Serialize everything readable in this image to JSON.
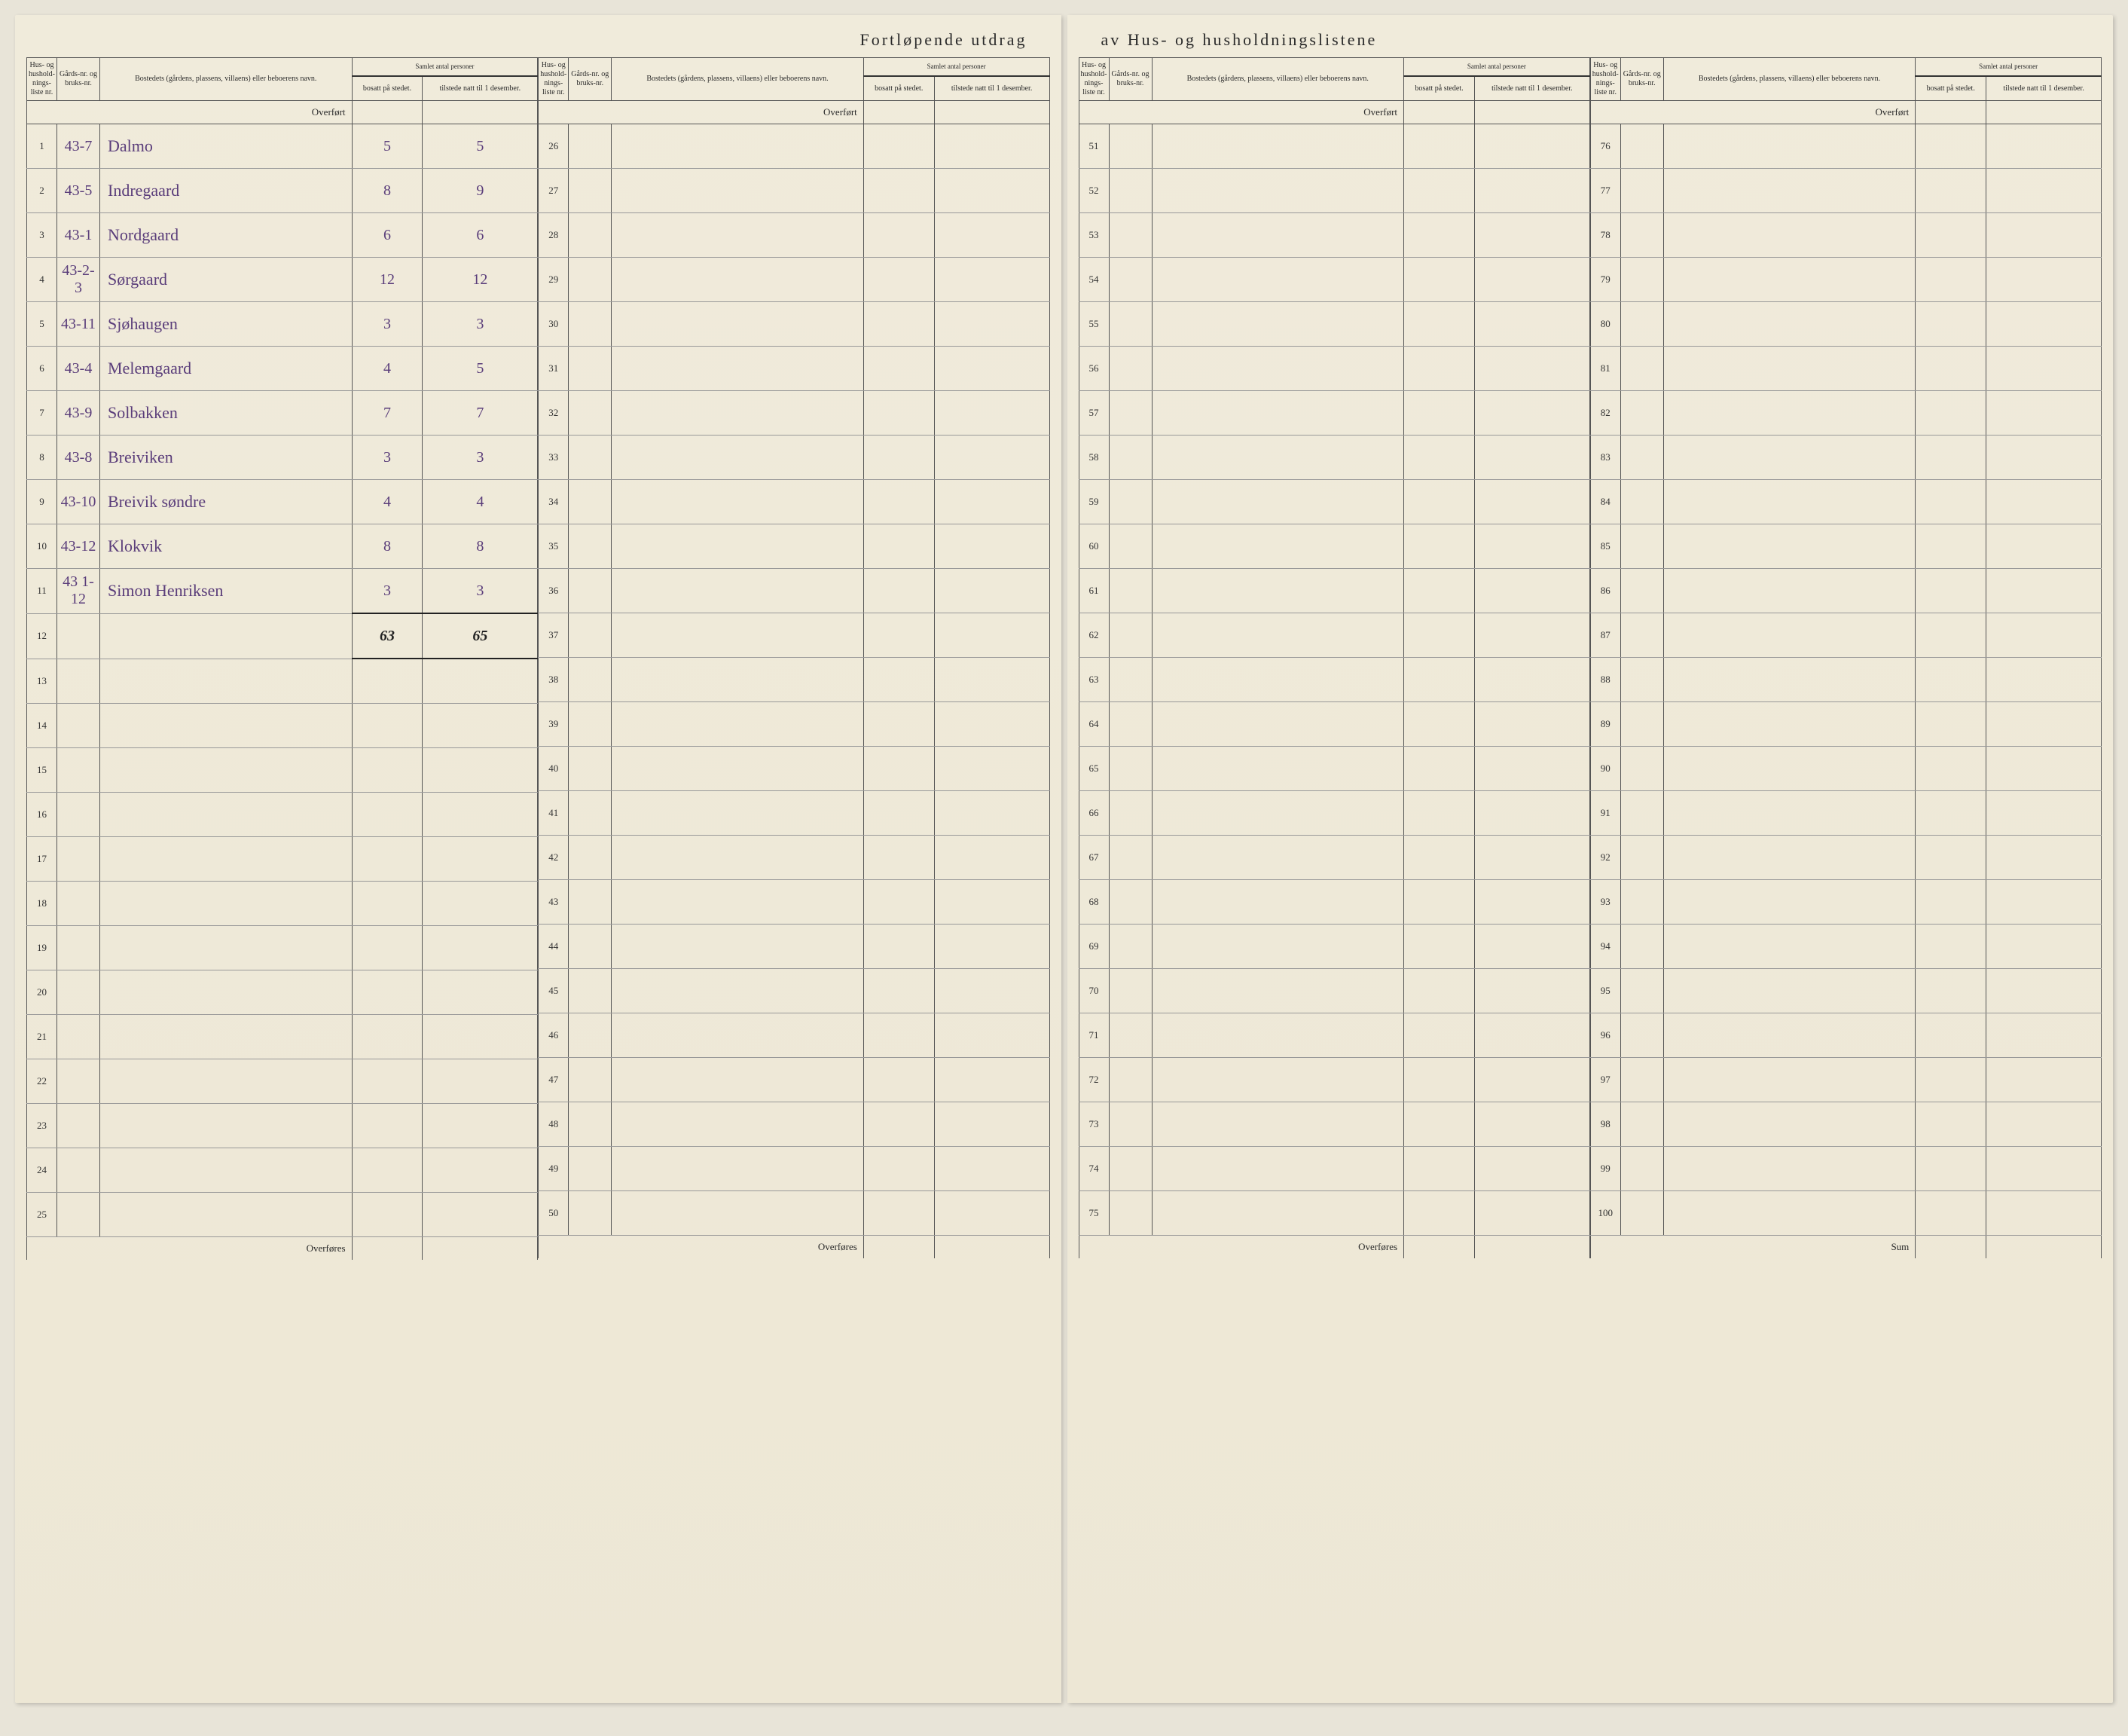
{
  "title_left": "Fortløpende utdrag",
  "title_right": "av Hus- og husholdningslistene",
  "headers": {
    "col1": "Hus- og hushold-nings-liste nr.",
    "col2": "Gårds-nr. og bruks-nr.",
    "col3": "Bostedets (gårdens, plassens, villaens) eller beboerens navn.",
    "samlet": "Samlet antal personer",
    "bosatt": "bosatt på stedet.",
    "tilstede": "tilstede natt til 1 desember."
  },
  "overfort": "Overført",
  "overfores": "Overføres",
  "sum": "Sum",
  "entries": [
    {
      "idx": "1",
      "gaard": "43-7",
      "name": "Dalmo",
      "bosatt": "5",
      "tilstede": "5"
    },
    {
      "idx": "2",
      "gaard": "43-5",
      "name": "Indregaard",
      "bosatt": "8",
      "tilstede": "9"
    },
    {
      "idx": "3",
      "gaard": "43-1",
      "name": "Nordgaard",
      "bosatt": "6",
      "tilstede": "6"
    },
    {
      "idx": "4",
      "gaard": "43-2-3",
      "name": "Sørgaard",
      "bosatt": "12",
      "tilstede": "12"
    },
    {
      "idx": "5",
      "gaard": "43-11",
      "name": "Sjøhaugen",
      "bosatt": "3",
      "tilstede": "3"
    },
    {
      "idx": "6",
      "gaard": "43-4",
      "name": "Melemgaard",
      "bosatt": "4",
      "tilstede": "5"
    },
    {
      "idx": "7",
      "gaard": "43-9",
      "name": "Solbakken",
      "bosatt": "7",
      "tilstede": "7"
    },
    {
      "idx": "8",
      "gaard": "43-8",
      "name": "Breiviken",
      "bosatt": "3",
      "tilstede": "3"
    },
    {
      "idx": "9",
      "gaard": "43-10",
      "name": "Breivik søndre",
      "bosatt": "4",
      "tilstede": "4"
    },
    {
      "idx": "10",
      "gaard": "43-12",
      "name": "Klokvik",
      "bosatt": "8",
      "tilstede": "8"
    },
    {
      "idx": "11",
      "gaard": "43 1-12",
      "name": "Simon Henriksen",
      "bosatt": "3",
      "tilstede": "3"
    }
  ],
  "totals": {
    "bosatt": "63",
    "tilstede": "65"
  },
  "sections": [
    {
      "start": 1,
      "end": 25,
      "hasData": true
    },
    {
      "start": 26,
      "end": 50,
      "hasData": false
    },
    {
      "start": 51,
      "end": 75,
      "hasData": false
    },
    {
      "start": 76,
      "end": 100,
      "hasData": false
    }
  ]
}
